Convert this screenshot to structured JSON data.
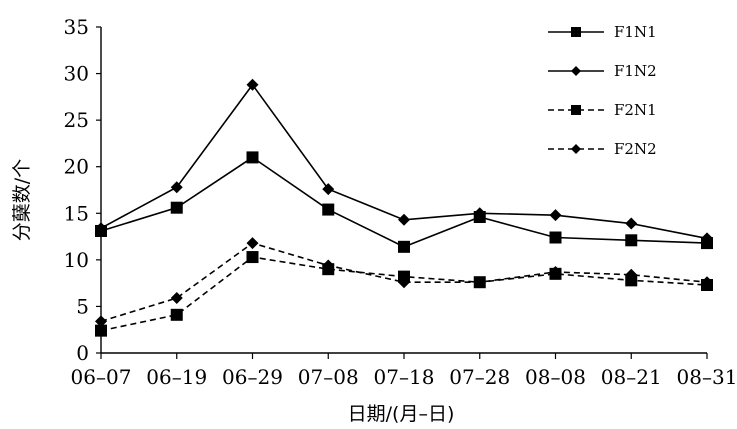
{
  "chart_data": {
    "type": "line",
    "categories": [
      "06–07",
      "06–19",
      "06–29",
      "07–08",
      "07–18",
      "07–28",
      "08–08",
      "08–21",
      "08–31"
    ],
    "ylabel": "分蘖数/个",
    "xlabel": "日期/(月–日)",
    "ylim": [
      0,
      35
    ],
    "yticks": [
      0,
      5,
      10,
      15,
      20,
      25,
      30,
      35
    ],
    "grid": false,
    "legend_position": "top-right",
    "series": [
      {
        "name": "F1N1",
        "line": "solid",
        "marker": "square",
        "values": [
          13.1,
          15.6,
          21.0,
          15.4,
          11.4,
          14.6,
          12.4,
          12.1,
          11.8
        ]
      },
      {
        "name": "F1N2",
        "line": "solid",
        "marker": "diamond",
        "values": [
          13.4,
          17.8,
          28.8,
          17.6,
          14.3,
          15.0,
          14.8,
          13.9,
          12.3
        ]
      },
      {
        "name": "F2N1",
        "line": "dashed",
        "marker": "square",
        "values": [
          2.4,
          4.1,
          10.3,
          9.0,
          8.2,
          7.6,
          8.5,
          7.8,
          7.3
        ]
      },
      {
        "name": "F2N2",
        "line": "dashed",
        "marker": "diamond",
        "values": [
          3.4,
          5.9,
          11.8,
          9.4,
          7.6,
          7.6,
          8.7,
          8.4,
          7.6
        ]
      }
    ],
    "colors": {
      "line": "#000000"
    }
  }
}
